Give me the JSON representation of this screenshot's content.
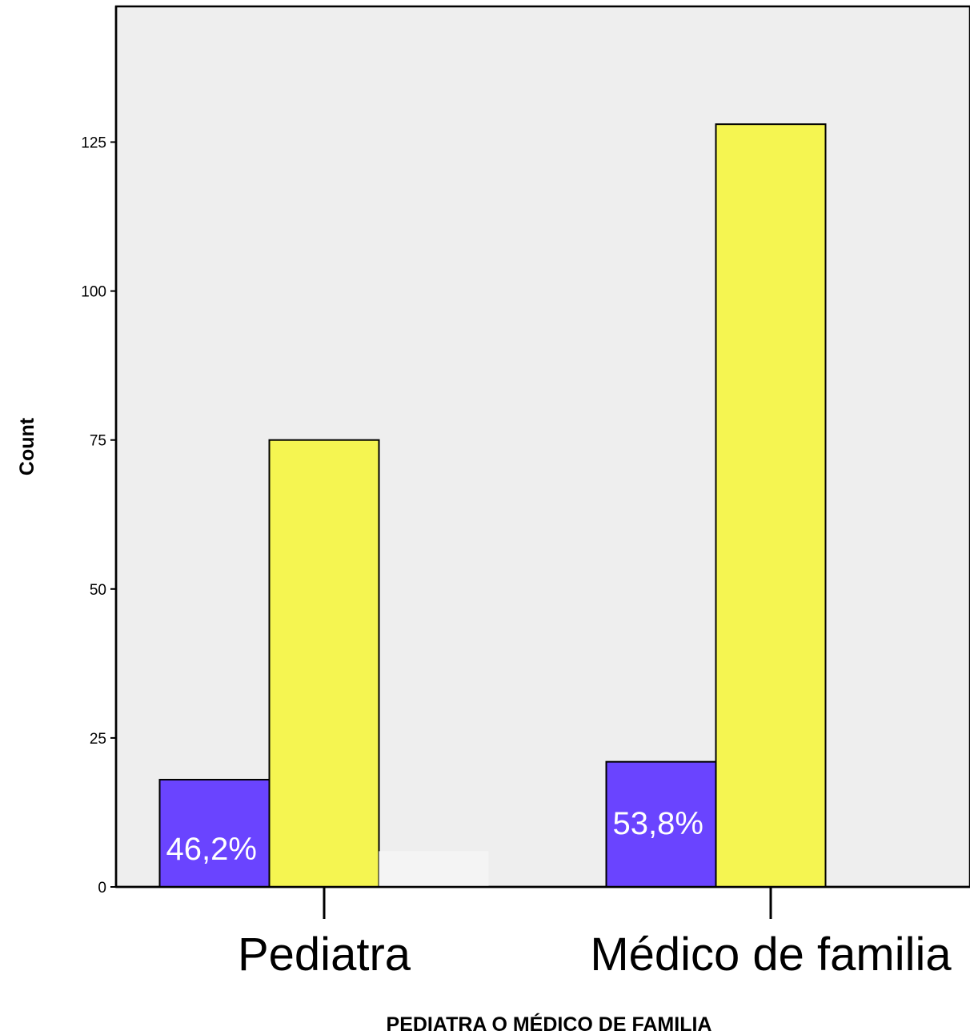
{
  "chart_data": {
    "type": "bar",
    "categories": [
      "Pediatra",
      "Médico de familia"
    ],
    "series": [
      {
        "values": [
          18,
          21
        ],
        "color": "#6a44ff",
        "data_labels": [
          "46,2%",
          "53,8%"
        ]
      },
      {
        "values": [
          75,
          128
        ],
        "color": "#f5f551"
      },
      {
        "values": [
          6,
          0
        ],
        "color": "#f4f4f4"
      }
    ],
    "xlabel": "PEDIATRA O MÉDICO DE FAMILIA",
    "ylabel": "Count",
    "yticks": [
      0,
      25,
      50,
      75,
      100,
      125
    ],
    "ylim": [
      0,
      147
    ],
    "plot_background": "#eeeeee",
    "grid": false,
    "legend": "none"
  }
}
